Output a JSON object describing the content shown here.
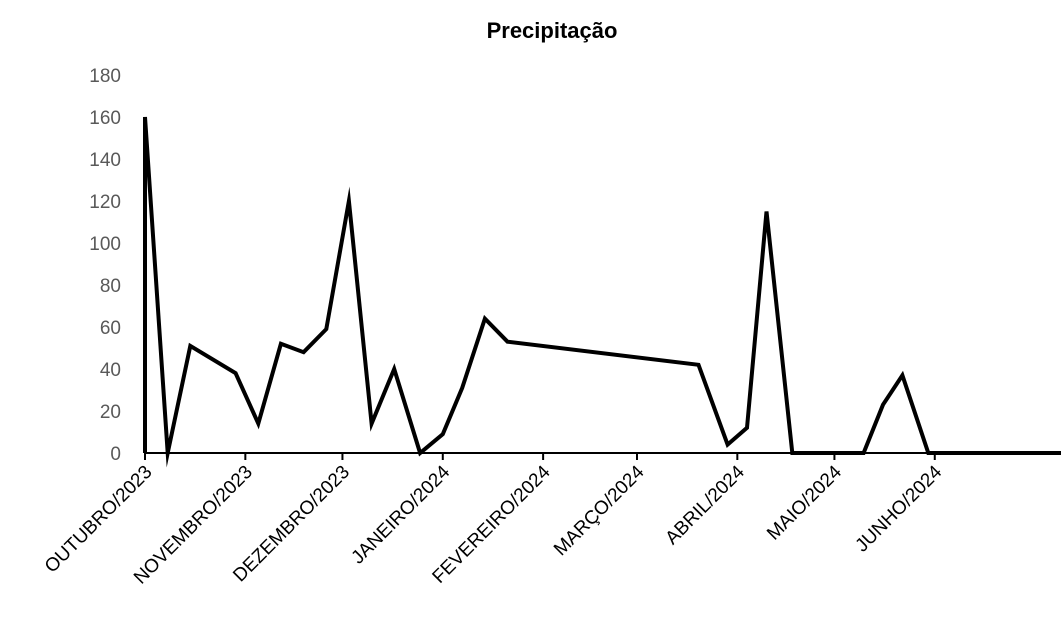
{
  "chart_data": {
    "type": "line",
    "title": "Precipitação",
    "xlabel": "",
    "ylabel": "",
    "ylim": [
      0,
      180
    ],
    "yticks": [
      0,
      20,
      40,
      60,
      80,
      100,
      120,
      140,
      160,
      180
    ],
    "xlim": [
      "2023-10-01",
      "2024-07-10"
    ],
    "xticks": [
      {
        "date": "2023-10-01",
        "label": "OUTUBRO/2023"
      },
      {
        "date": "2023-11-01",
        "label": "NOVEMBRO/2023"
      },
      {
        "date": "2023-12-01",
        "label": "DEZEMBRO/2023"
      },
      {
        "date": "2024-01-01",
        "label": "JANEIRO/2024"
      },
      {
        "date": "2024-02-01",
        "label": "FEVEREIRO/2024"
      },
      {
        "date": "2024-03-01",
        "label": "MARÇO/2024"
      },
      {
        "date": "2024-04-01",
        "label": "ABRIL/2024"
      },
      {
        "date": "2024-05-01",
        "label": "MAIO/2024"
      },
      {
        "date": "2024-06-01",
        "label": "JUNHO/2024"
      }
    ],
    "grid": false,
    "legend": "none",
    "line_color": "#000000",
    "series": [
      {
        "points": [
          {
            "x": "2023-10-01",
            "y": 0
          },
          {
            "x": "2023-10-01",
            "y": 160
          },
          {
            "x": "2023-10-08",
            "y": 0
          },
          {
            "x": "2023-10-15",
            "y": 51
          },
          {
            "x": "2023-10-29",
            "y": 38
          },
          {
            "x": "2023-11-05",
            "y": 14
          },
          {
            "x": "2023-11-12",
            "y": 52
          },
          {
            "x": "2023-11-19",
            "y": 48
          },
          {
            "x": "2023-11-26",
            "y": 59
          },
          {
            "x": "2023-12-03",
            "y": 120
          },
          {
            "x": "2023-12-10",
            "y": 14
          },
          {
            "x": "2023-12-17",
            "y": 40
          },
          {
            "x": "2023-12-25",
            "y": 0
          },
          {
            "x": "2024-01-01",
            "y": 9
          },
          {
            "x": "2024-01-07",
            "y": 31
          },
          {
            "x": "2024-01-14",
            "y": 64
          },
          {
            "x": "2024-01-21",
            "y": 53
          },
          {
            "x": "2024-03-20",
            "y": 42
          },
          {
            "x": "2024-03-29",
            "y": 4
          },
          {
            "x": "2024-04-04",
            "y": 12
          },
          {
            "x": "2024-04-10",
            "y": 115
          },
          {
            "x": "2024-04-18",
            "y": 0
          },
          {
            "x": "2024-05-10",
            "y": 0
          },
          {
            "x": "2024-05-16",
            "y": 23
          },
          {
            "x": "2024-05-22",
            "y": 37
          },
          {
            "x": "2024-05-30",
            "y": 0
          },
          {
            "x": "2024-07-10",
            "y": 0
          }
        ]
      }
    ]
  }
}
